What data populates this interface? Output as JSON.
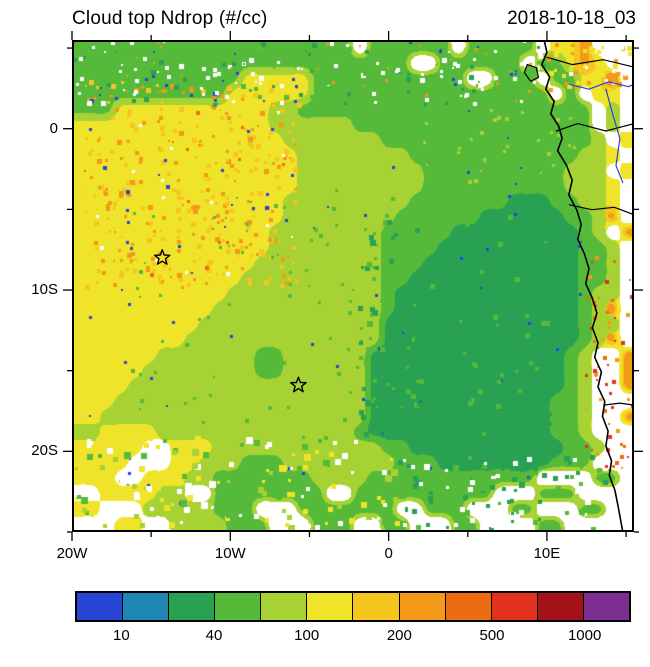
{
  "title": "Cloud top Ndrop (#/cc)",
  "timestamp": "2018-10-18_03",
  "chart_data": {
    "type": "heatmap",
    "variable": "Cloud top droplet number concentration (Ndrop)",
    "units": "#/cc",
    "lon_range": [
      -20,
      15.5
    ],
    "lat_range": [
      -25,
      5.5
    ],
    "x_ticks": [
      {
        "lon": -20,
        "label": "20W"
      },
      {
        "lon": -10,
        "label": "10W"
      },
      {
        "lon": 0,
        "label": "0"
      },
      {
        "lon": 10,
        "label": "10E"
      }
    ],
    "x_minor_ticks": [
      -15,
      -5,
      5,
      15
    ],
    "y_ticks": [
      {
        "lat": 0,
        "label": "0"
      },
      {
        "lat": -10,
        "label": "10S"
      },
      {
        "lat": -20,
        "label": "20S"
      }
    ],
    "y_minor_ticks": [
      5,
      -5,
      -15,
      -25
    ],
    "colorbar": {
      "colors": [
        "#2746d4",
        "#1f86b4",
        "#28a152",
        "#55ba3a",
        "#a6d233",
        "#f0e42a",
        "#f6c51e",
        "#f2991a",
        "#ec6c14",
        "#e2321f",
        "#a31218",
        "#7c2d90"
      ],
      "labels": [
        {
          "value": "10",
          "after_cell": 1
        },
        {
          "value": "40",
          "after_cell": 3
        },
        {
          "value": "100",
          "after_cell": 5
        },
        {
          "value": "200",
          "after_cell": 7
        },
        {
          "value": "500",
          "after_cell": 9
        },
        {
          "value": "1000",
          "after_cell": 11
        }
      ],
      "level_boundaries": [
        10,
        20,
        40,
        70,
        100,
        150,
        200,
        300,
        500,
        700,
        1000
      ]
    },
    "no_data_color": "#ffffff",
    "field_grid": {
      "cols": 40,
      "rows": 32,
      "palette_chars": "0123456789AB",
      "no_data_char": ".",
      "rows_rle": [
        "3:20,.:1,3:6,.:1,3:5,.:1,5:2,7:1,.:3",
        "3:24,.:2,3:6,.:1,3:2,5:1,7:1,5:1,.:2",
        "3:12,5:5,3:11,.:2,3:3,.:1,3:2,5:2,8:1,.:1",
        "3:11,5:6,3:17,.:1,3:1,.:1,5:2,.:1",
        "3:3,5:11,4:2,3:21,.:1,4:1,.:1",
        "5:14,4:6,3:17,.:1,4:1,.:1",
        "5:15,4:7,3:15,4:1,.:1,5:1",
        "5:16,4:8,3:12,4:2,5:1,.:1",
        "5:16,4:9,3:10,4:3,.:1,5:1",
        "5:16,4:9,3:10,4:3,5:1,.:1",
        "5:15,4:9,3:7,2:3,3:2,4:2,5:1,.:1",
        "5:15,4:8,3:6,2:6,3:2,4:1,7:1,.:1",
        "5:14,4:8,3:5,2:9,3:1,4:1,.:1,7:1",
        "5:14,4:8,3:4,2:10,3:2,4:1,.:1",
        "5:13,4:9,3:3,2:11,3:2,4:1,.:1",
        "5:12,4:10,3:2,2:12,3:2,4:1,.:1",
        "5:11,4:11,3:1,2:13,3:1,4:2,.:1",
        "5:10,4:12,3:1,2:13,3:1,4:1,7:1,.:1",
        "5:9,4:13,2:14,3:1,4:2,.:1",
        "5:8,4:14,2:14,3:1,4:1,7:1,.:1",
        "5:6,4:7,3:2,4:6,2:14,3:1,4:1,.:2,7:1",
        "5:5,4:8,3:2,4:6,2:14,3:1,4:1,.:2,7:1",
        "5:4,4:17,2:14,3:1,4:1,.:2,7:1",
        "5:3,4:18,2:13,3:2,4:1,.:3",
        "5:2,4:19,2:13,3:2,4:1,.:2,7:1",
        "4:2,5:4,4:14,3:1,2:13,3:2,4:1,.:3",
        "5:5,.:2,5:3,4:12,3:2,2:11,3:2,4:1,.:2",
        "5:4,.:3,5:2,4:3,3:3,4:8,3:3,2:8,3:3,.:3",
        "5:3,.:2,5:3,4:2,3:7,4:4,3:12,.:4,3:2,.:1",
        ".:2,5:4,4:2,.:2,3:8,.:2,3:10,.:3,3:3,.:4",
        "5:2,.:3,4:5,3:3,.:3,3:7,.:2,3:3,.:3,3:2,.:3,3:2,.:2",
        ".:3,5:2,.:2,4:4,3:3,.:3,3:3,.:2,3:2,.:3,3:2,.:4,3:2,.:5"
      ]
    },
    "noise_seed": 20181018,
    "noise_regions": [
      {
        "x0": 0.02,
        "x1": 0.4,
        "y0": 0.08,
        "y1": 0.5,
        "count": 340,
        "smin": 2,
        "smax": 5,
        "chars": "66677"
      },
      {
        "x0": 0.02,
        "x1": 0.4,
        "y0": 0.08,
        "y1": 0.5,
        "count": 50,
        "smin": 2,
        "smax": 4,
        "chars": "8.0"
      },
      {
        "x0": 0.0,
        "x1": 0.84,
        "y0": 0.0,
        "y1": 0.13,
        "count": 180,
        "smin": 2,
        "smax": 5,
        "chars": "23.."
      },
      {
        "x0": 0.0,
        "x1": 0.84,
        "y0": 0.0,
        "y1": 0.13,
        "count": 50,
        "smin": 2,
        "smax": 3,
        "chars": "077"
      },
      {
        "x0": 0.02,
        "x1": 0.92,
        "y0": 0.05,
        "y1": 0.95,
        "count": 60,
        "smin": 2,
        "smax": 3,
        "chars": "0"
      },
      {
        "x0": 0.1,
        "x1": 0.62,
        "y0": 0.3,
        "y1": 0.78,
        "count": 90,
        "smin": 2,
        "smax": 4,
        "chars": "3"
      },
      {
        "x0": 0.5,
        "x1": 0.86,
        "y0": 0.35,
        "y1": 0.8,
        "count": 170,
        "smin": 3,
        "smax": 6,
        "chars": "223"
      },
      {
        "x0": 0.0,
        "x1": 0.58,
        "y0": 0.8,
        "y1": 0.99,
        "count": 160,
        "smin": 3,
        "smax": 7,
        "chars": ".354"
      },
      {
        "x0": 0.58,
        "x1": 0.95,
        "y0": 0.84,
        "y1": 0.99,
        "count": 120,
        "smin": 3,
        "smax": 6,
        "chars": "3.2"
      },
      {
        "x0": 0.91,
        "x1": 0.995,
        "y0": 0.42,
        "y1": 0.88,
        "count": 60,
        "smin": 2,
        "smax": 4,
        "chars": "789"
      },
      {
        "x0": 0.84,
        "x1": 0.995,
        "y0": 0.0,
        "y1": 0.1,
        "count": 45,
        "smin": 3,
        "smax": 5,
        "chars": "57."
      },
      {
        "x0": 0.62,
        "x1": 0.9,
        "y0": 0.14,
        "y1": 0.3,
        "count": 60,
        "smin": 2,
        "smax": 4,
        "chars": "34"
      }
    ],
    "star_markers": [
      {
        "lon": -14.3,
        "lat": -8.0
      },
      {
        "lon": -5.7,
        "lat": -15.9
      }
    ],
    "notable_features": [
      {
        "region": "west (19W-8W, 1S-13S)",
        "description": "broad elevated-Ndrop area ~100-200 #/cc (yellow) with scattered 150-500 #/cc speckles"
      },
      {
        "region": "east-central (1W-11E, 5S-20S)",
        "description": "large low-Ndrop pool ~20-40 #/cc (dark green)"
      },
      {
        "region": "northern band (5N-1N)",
        "description": "mixed 40-100 #/cc greens with missing-data gaps"
      },
      {
        "region": "south of 20S",
        "description": "patchy 40-150 #/cc cells with many missing-data gaps"
      },
      {
        "region": "African land (east of coastline)",
        "description": "mostly missing data with scattered 200-700 #/cc points"
      }
    ]
  },
  "geo": {
    "coast_color": "#000000",
    "river_color": "#2746d4",
    "coastline": [
      [
        0.84,
        0.0
      ],
      [
        0.845,
        0.025
      ],
      [
        0.836,
        0.05
      ],
      [
        0.85,
        0.075
      ],
      [
        0.843,
        0.1
      ],
      [
        0.858,
        0.125
      ],
      [
        0.852,
        0.15
      ],
      [
        0.866,
        0.175
      ],
      [
        0.872,
        0.2
      ],
      [
        0.864,
        0.225
      ],
      [
        0.88,
        0.255
      ],
      [
        0.89,
        0.285
      ],
      [
        0.884,
        0.315
      ],
      [
        0.898,
        0.345
      ],
      [
        0.906,
        0.375
      ],
      [
        0.9,
        0.405
      ],
      [
        0.912,
        0.435
      ],
      [
        0.92,
        0.465
      ],
      [
        0.914,
        0.495
      ],
      [
        0.926,
        0.525
      ],
      [
        0.934,
        0.555
      ],
      [
        0.926,
        0.585
      ],
      [
        0.936,
        0.615
      ],
      [
        0.93,
        0.645
      ],
      [
        0.942,
        0.675
      ],
      [
        0.936,
        0.705
      ],
      [
        0.948,
        0.735
      ],
      [
        0.944,
        0.765
      ],
      [
        0.954,
        0.795
      ],
      [
        0.95,
        0.825
      ],
      [
        0.96,
        0.855
      ],
      [
        0.956,
        0.885
      ],
      [
        0.966,
        0.915
      ],
      [
        0.972,
        0.95
      ],
      [
        0.98,
        1.0
      ]
    ],
    "borders": [
      [
        [
          0.845,
          0.035
        ],
        [
          0.89,
          0.05
        ],
        [
          0.945,
          0.04
        ],
        [
          1.0,
          0.055
        ]
      ],
      [
        [
          0.862,
          0.185
        ],
        [
          0.9,
          0.17
        ],
        [
          0.95,
          0.185
        ],
        [
          1.0,
          0.17
        ]
      ],
      [
        [
          0.885,
          0.335
        ],
        [
          0.925,
          0.345
        ],
        [
          0.965,
          0.34
        ],
        [
          1.0,
          0.355
        ]
      ],
      [
        [
          0.946,
          0.742
        ],
        [
          0.975,
          0.738
        ],
        [
          1.0,
          0.742
        ]
      ]
    ],
    "rivers": [
      [
        [
          0.885,
          0.09
        ],
        [
          0.92,
          0.1
        ],
        [
          0.955,
          0.085
        ],
        [
          0.99,
          0.095
        ],
        [
          1.0,
          0.09
        ]
      ],
      [
        [
          0.95,
          0.1
        ],
        [
          0.962,
          0.15
        ],
        [
          0.975,
          0.2
        ],
        [
          0.968,
          0.255
        ],
        [
          0.98,
          0.29
        ]
      ]
    ],
    "islands": [
      [
        [
          0.81,
          0.05
        ],
        [
          0.826,
          0.056
        ],
        [
          0.83,
          0.076
        ],
        [
          0.816,
          0.084
        ],
        [
          0.805,
          0.066
        ]
      ]
    ]
  }
}
